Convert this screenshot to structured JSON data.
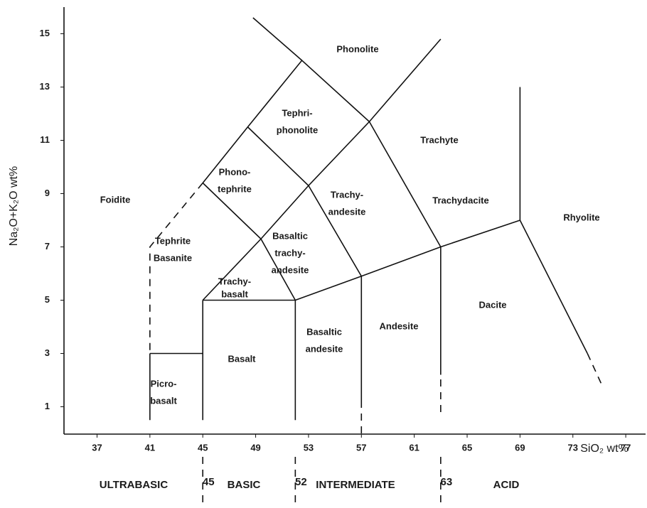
{
  "chart_data": {
    "type": "line",
    "x_label": "SiO₂ wt%",
    "y_label": "Na₂O+K₂O wt%",
    "xlim": [
      34.5,
      78.5
    ],
    "ylim": [
      0,
      16
    ],
    "xticks": [
      37,
      41,
      45,
      49,
      53,
      57,
      61,
      65,
      69,
      73,
      77
    ],
    "yticks": [
      1,
      3,
      5,
      7,
      9,
      11,
      13,
      15
    ],
    "color": "#111111",
    "series": [
      {
        "x": [
          45,
          41,
          41
        ],
        "y": [
          9.4,
          7,
          3
        ],
        "dashed": true
      },
      {
        "x": [
          41,
          41
        ],
        "y": [
          0.5,
          3
        ],
        "dashed": false
      },
      {
        "x": [
          41,
          45
        ],
        "y": [
          3,
          3
        ],
        "dashed": false
      },
      {
        "x": [
          45,
          45
        ],
        "y": [
          0.5,
          5
        ],
        "dashed": false
      },
      {
        "x": [
          45,
          52
        ],
        "y": [
          5,
          5
        ],
        "dashed": false
      },
      {
        "x": [
          52,
          52
        ],
        "y": [
          0.5,
          5
        ],
        "dashed": false
      },
      {
        "x": [
          52,
          57,
          63,
          69
        ],
        "y": [
          5,
          5.9,
          7,
          8
        ],
        "dashed": false
      },
      {
        "x": [
          57,
          57
        ],
        "y": [
          1,
          5.9
        ],
        "dashed": false
      },
      {
        "x": [
          57,
          57
        ],
        "y": [
          0,
          1
        ],
        "dashed": true
      },
      {
        "x": [
          63,
          63
        ],
        "y": [
          2.2,
          7
        ],
        "dashed": false
      },
      {
        "x": [
          63,
          63
        ],
        "y": [
          0.8,
          2.2
        ],
        "dashed": true
      },
      {
        "x": [
          45,
          49.4,
          53,
          57.6,
          63
        ],
        "y": [
          5,
          7.3,
          9.3,
          11.7,
          14.8
        ],
        "dashed": false
      },
      {
        "x": [
          52,
          49.4,
          45
        ],
        "y": [
          5,
          7.3,
          9.4
        ],
        "dashed": false
      },
      {
        "x": [
          57,
          53,
          48.4
        ],
        "y": [
          5.9,
          9.3,
          11.5
        ],
        "dashed": false
      },
      {
        "x": [
          45,
          48.4,
          52.5,
          57.6
        ],
        "y": [
          9.4,
          11.5,
          14,
          11.7
        ],
        "dashed": false
      },
      {
        "x": [
          52.5,
          48.8
        ],
        "y": [
          14,
          15.6
        ],
        "dashed": false
      },
      {
        "x": [
          57.6,
          63
        ],
        "y": [
          11.7,
          7
        ],
        "dashed": false
      },
      {
        "x": [
          69,
          69
        ],
        "y": [
          8,
          13
        ],
        "dashed": false
      },
      {
        "x": [
          69,
          74.1
        ],
        "y": [
          8,
          3
        ],
        "dashed": false
      },
      {
        "x": [
          74.1,
          75.3
        ],
        "y": [
          3,
          1.7
        ],
        "dashed": true
      }
    ],
    "fields": [
      [
        "Phonolite"
      ],
      [
        "Tephri-",
        "phonolite"
      ],
      [
        "Trachyte"
      ],
      [
        "Phono-",
        "tephrite"
      ],
      [
        "Foidite"
      ],
      [
        "Trachy-",
        "andesite"
      ],
      [
        "Trachydacite"
      ],
      [
        "Rhyolite"
      ],
      [
        "Basaltic",
        "trachy-",
        "andesite"
      ],
      [
        "Tephrite",
        "Basanite"
      ],
      [
        "Trachy-",
        "basalt"
      ],
      [
        "Dacite"
      ],
      [
        "Basaltic",
        "andesite"
      ],
      [
        "Andesite"
      ],
      [
        "Basalt"
      ],
      [
        "Picro-",
        "basalt"
      ]
    ],
    "classes": [
      "ULTRABASIC",
      "BASIC",
      "INTERMEDIATE",
      "ACID"
    ],
    "class_bounds": [
      45,
      52,
      63
    ]
  }
}
